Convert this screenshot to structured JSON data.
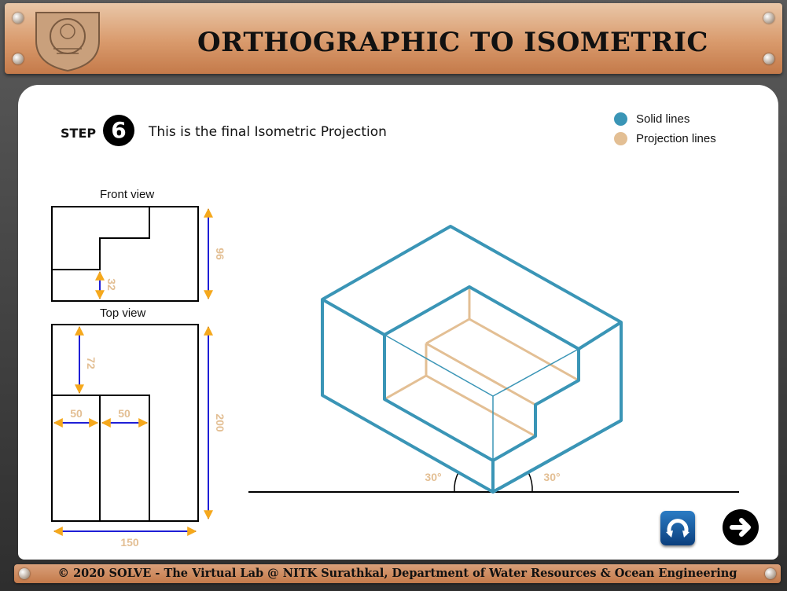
{
  "header": {
    "title": "ORTHOGRAPHIC TO ISOMETRIC"
  },
  "step": {
    "label": "STEP",
    "number": "6",
    "text": "This is the final Isometric Projection"
  },
  "legend": {
    "solid_label": "Solid lines",
    "solid_color": "#3a95b6",
    "projection_label": "Projection lines",
    "projection_color": "#e3bf94"
  },
  "front_view": {
    "label": "Front view",
    "dim_height": "96",
    "dim_step": "32"
  },
  "top_view": {
    "label": "Top view",
    "dim_72": "72",
    "dim_50a": "50",
    "dim_50b": "50",
    "dim_200": "200",
    "dim_150": "150"
  },
  "isometric": {
    "angle_left": "30°",
    "angle_right": "30°"
  },
  "footer": {
    "text": "© 2020 SOLVE - The Virtual Lab @ NITK Surathkal, Department of Water Resources & Ocean Engineering"
  },
  "controls": {
    "reload_icon": "reload-icon",
    "next_icon": "next-arrow-icon"
  }
}
